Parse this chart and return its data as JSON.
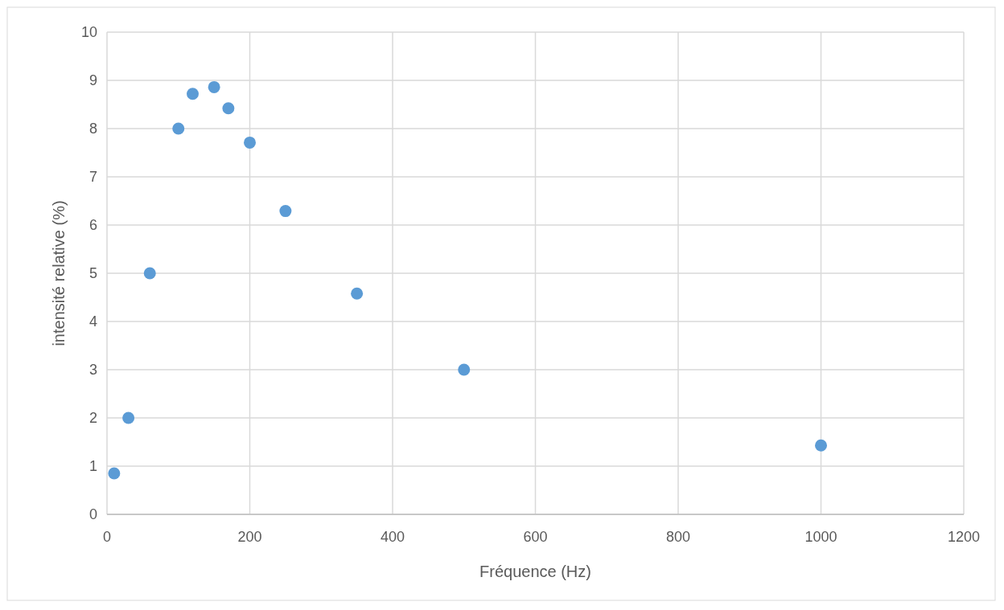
{
  "chart_data": {
    "type": "scatter",
    "xlabel": "Fréquence (Hz)",
    "ylabel": "intensité relative (%)",
    "x": [
      10,
      30,
      60,
      100,
      120,
      150,
      170,
      200,
      250,
      350,
      500,
      1000
    ],
    "series": [
      {
        "color": "#5b9bd5",
        "values": [
          0.85,
          2.0,
          5.0,
          8.0,
          8.72,
          8.86,
          8.42,
          7.71,
          6.29,
          4.58,
          3.0,
          1.43
        ]
      }
    ],
    "xlim": [
      0,
      1200
    ],
    "xticks": [
      0,
      200,
      400,
      600,
      800,
      1000,
      1200
    ],
    "ylim": [
      0,
      10
    ],
    "yticks": [
      0,
      1,
      2,
      3,
      4,
      5,
      6,
      7,
      8,
      9,
      10
    ],
    "grid": true,
    "marker": "circle"
  }
}
